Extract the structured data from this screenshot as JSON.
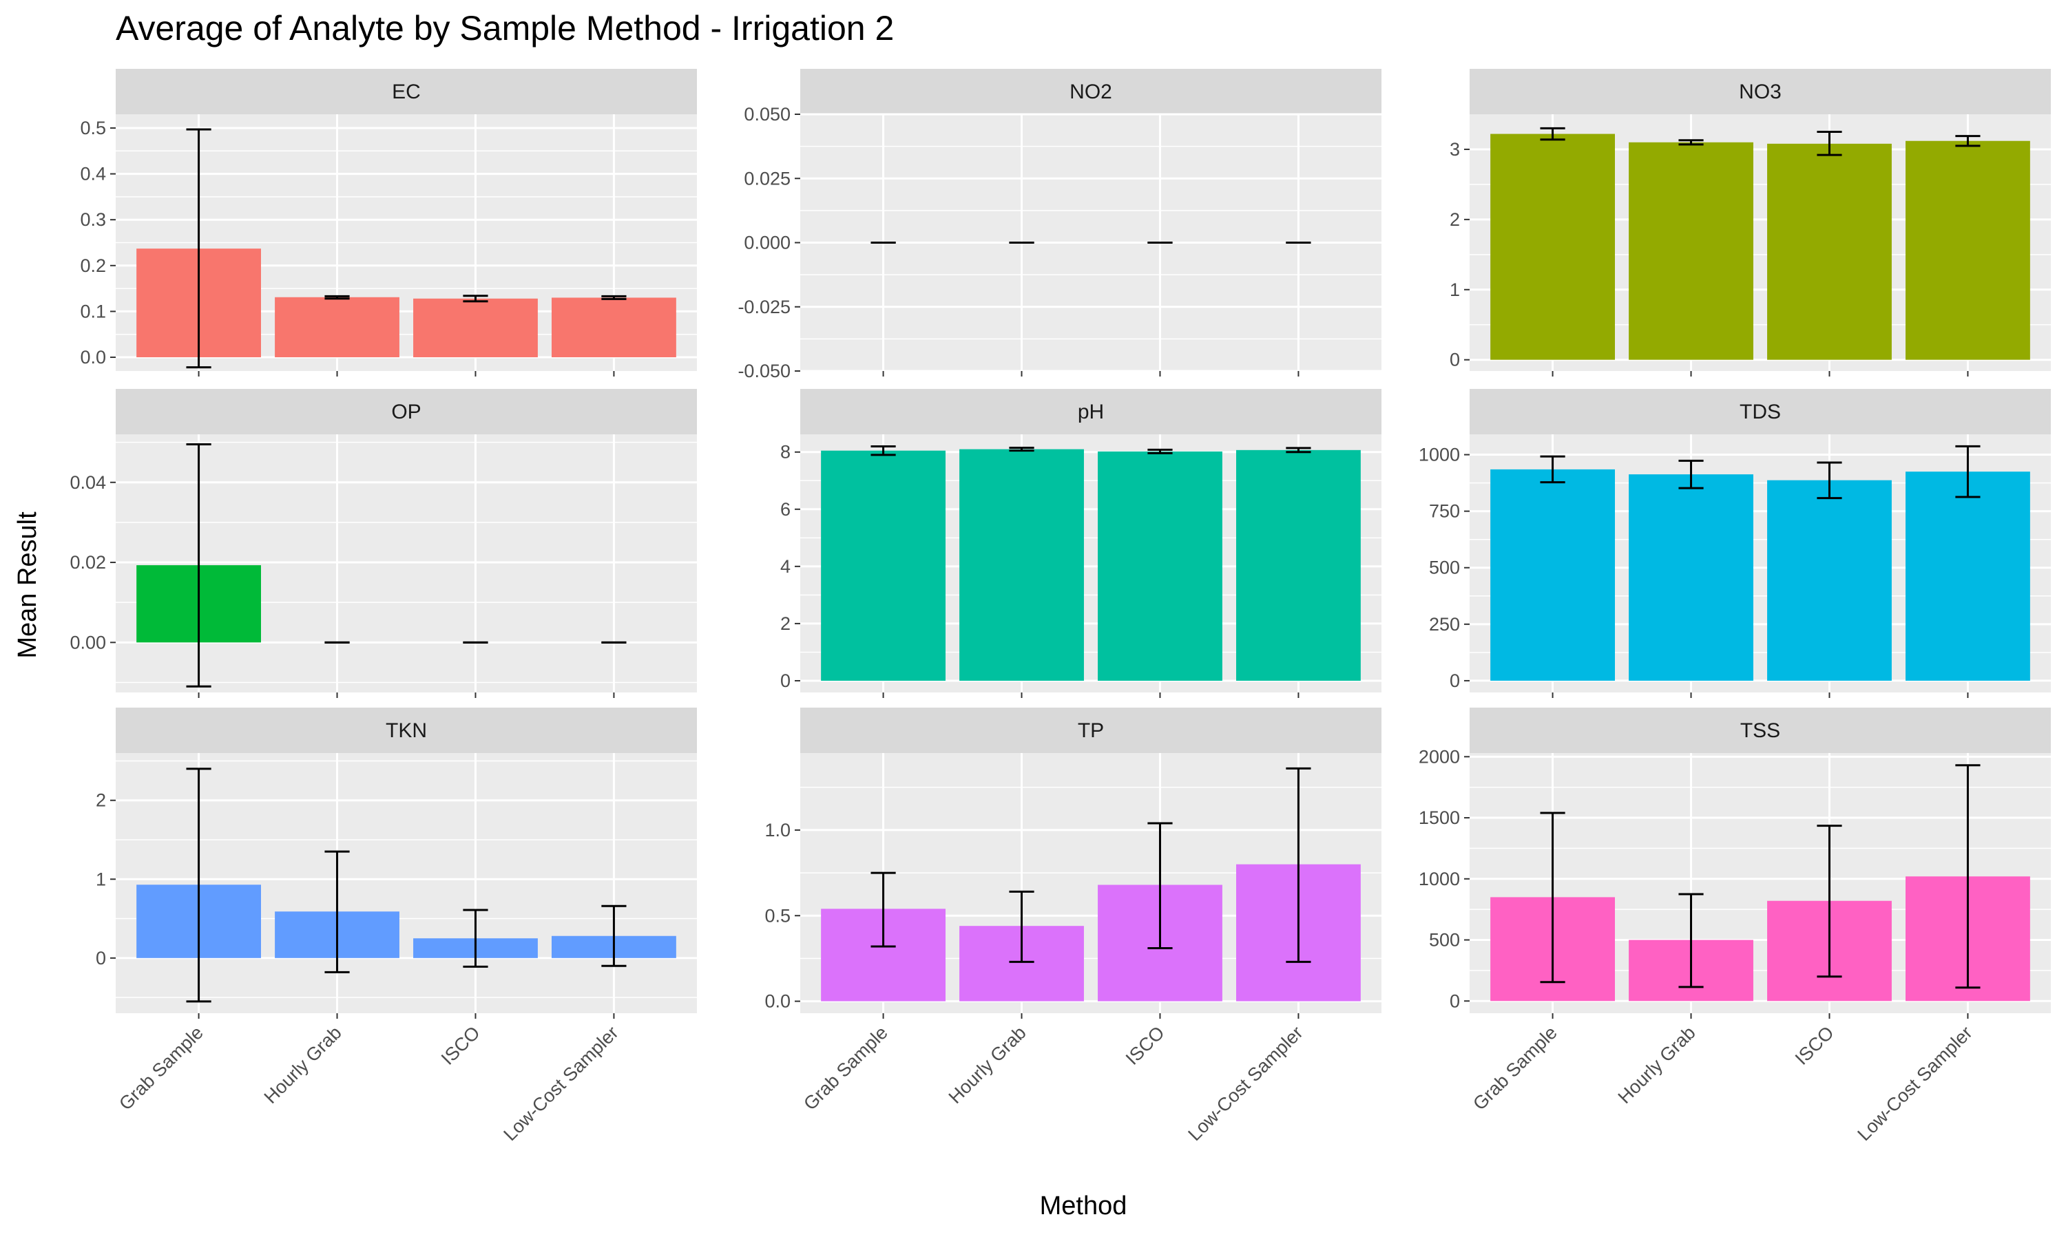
{
  "chart_data": {
    "type": "bar",
    "title": "Average of Analyte by Sample Method - Irrigation 2",
    "xlabel": "Method",
    "ylabel": "Mean Result",
    "categories": [
      "Grab Sample",
      "Hourly Grab",
      "ISCO",
      "Low-Cost Sampler"
    ],
    "grid": true,
    "legend": "none",
    "error_bars": true,
    "panels": [
      {
        "name": "EC",
        "color": "#F8766D",
        "ylim": [
          -0.03,
          0.53
        ],
        "yticks": [
          0.0,
          0.1,
          0.2,
          0.3,
          0.4,
          0.5
        ],
        "ytick_labels": [
          "0.0",
          "0.1",
          "0.2",
          "0.3",
          "0.4",
          "0.5"
        ],
        "values": [
          0.237,
          0.131,
          0.128,
          0.13
        ],
        "err_low": [
          -0.022,
          0.128,
          0.122,
          0.127
        ],
        "err_high": [
          0.497,
          0.133,
          0.134,
          0.133
        ]
      },
      {
        "name": "NO2",
        "color": "#D39200",
        "ylim": [
          -0.05,
          0.05
        ],
        "yticks": [
          -0.05,
          -0.025,
          0.0,
          0.025,
          0.05
        ],
        "ytick_labels": [
          "-0.050",
          "-0.025",
          "0.000",
          "0.025",
          "0.050"
        ],
        "values": [
          0.0,
          0.0,
          0.0,
          0.0
        ],
        "err_low": [
          0.0,
          0.0,
          0.0,
          0.0
        ],
        "err_high": [
          0.0,
          0.0,
          0.0,
          0.0
        ]
      },
      {
        "name": "NO3",
        "color": "#93AA00",
        "ylim": [
          -0.16,
          3.5
        ],
        "yticks": [
          0,
          1,
          2,
          3
        ],
        "ytick_labels": [
          "0",
          "1",
          "2",
          "3"
        ],
        "values": [
          3.22,
          3.1,
          3.08,
          3.12
        ],
        "err_low": [
          3.14,
          3.07,
          2.92,
          3.05
        ],
        "err_high": [
          3.3,
          3.13,
          3.25,
          3.19
        ]
      },
      {
        "name": "OP",
        "color": "#00BA38",
        "ylim": [
          -0.0125,
          0.052
        ],
        "yticks": [
          0.0,
          0.02,
          0.04
        ],
        "ytick_labels": [
          "0.00",
          "0.02",
          "0.04"
        ],
        "values": [
          0.0193,
          0.0,
          0.0,
          0.0
        ],
        "err_low": [
          -0.011,
          0.0,
          0.0,
          0.0
        ],
        "err_high": [
          0.0495,
          0.0,
          0.0,
          0.0
        ]
      },
      {
        "name": "pH",
        "color": "#00C19F",
        "ylim": [
          -0.41,
          8.62
        ],
        "yticks": [
          0,
          2,
          4,
          6,
          8
        ],
        "ytick_labels": [
          "0",
          "2",
          "4",
          "6",
          "8"
        ],
        "values": [
          8.05,
          8.1,
          8.02,
          8.07
        ],
        "err_low": [
          7.9,
          8.05,
          7.96,
          8.0
        ],
        "err_high": [
          8.2,
          8.15,
          8.08,
          8.14
        ]
      },
      {
        "name": "TDS",
        "color": "#00B9E3",
        "ylim": [
          -52,
          1090
        ],
        "yticks": [
          0,
          250,
          500,
          750,
          1000
        ],
        "ytick_labels": [
          "0",
          "250",
          "500",
          "750",
          "1000"
        ],
        "values": [
          935,
          913,
          887,
          925
        ],
        "err_low": [
          878,
          852,
          808,
          813
        ],
        "err_high": [
          992,
          973,
          965,
          1037
        ]
      },
      {
        "name": "TKN",
        "color": "#619CFF",
        "ylim": [
          -0.7,
          2.6
        ],
        "yticks": [
          0,
          1,
          2
        ],
        "ytick_labels": [
          "0",
          "1",
          "2"
        ],
        "values": [
          0.93,
          0.59,
          0.25,
          0.28
        ],
        "err_low": [
          -0.55,
          -0.18,
          -0.11,
          -0.1
        ],
        "err_high": [
          2.4,
          1.35,
          0.61,
          0.66
        ]
      },
      {
        "name": "TP",
        "color": "#DB72FB",
        "ylim": [
          -0.07,
          1.45
        ],
        "yticks": [
          0.0,
          0.5,
          1.0
        ],
        "ytick_labels": [
          "0.0",
          "0.5",
          "1.0"
        ],
        "values": [
          0.54,
          0.44,
          0.68,
          0.8
        ],
        "err_low": [
          0.32,
          0.23,
          0.31,
          0.23
        ],
        "err_high": [
          0.75,
          0.64,
          1.04,
          1.36
        ]
      },
      {
        "name": "TSS",
        "color": "#FF61C3",
        "ylim": [
          -100,
          2030
        ],
        "yticks": [
          0,
          500,
          1000,
          1500,
          2000
        ],
        "ytick_labels": [
          "0",
          "500",
          "1000",
          "1500",
          "2000"
        ],
        "values": [
          850,
          500,
          820,
          1020
        ],
        "err_low": [
          155,
          115,
          200,
          110
        ],
        "err_high": [
          1540,
          875,
          1435,
          1930
        ]
      }
    ]
  }
}
